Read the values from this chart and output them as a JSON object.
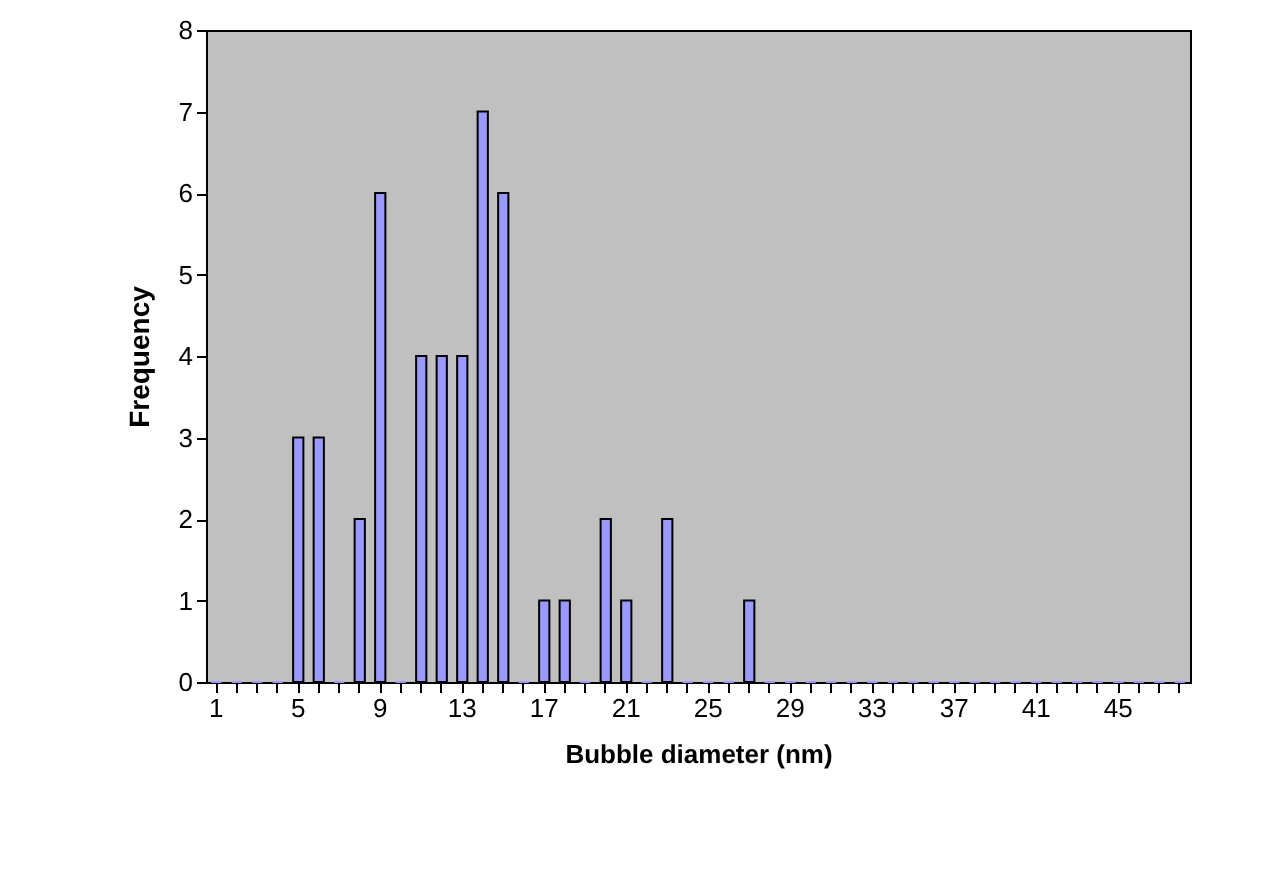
{
  "chart_data": {
    "type": "bar",
    "xlabel": "Bubble diameter (nm)",
    "ylabel": "Frequency",
    "categories": [
      "1",
      null,
      null,
      null,
      "5",
      null,
      null,
      null,
      "9",
      null,
      null,
      null,
      "13",
      null,
      null,
      null,
      "17",
      null,
      null,
      null,
      "21",
      null,
      null,
      null,
      "25",
      null,
      null,
      null,
      "29",
      null,
      null,
      null,
      "33",
      null,
      null,
      null,
      "37",
      null,
      null,
      null,
      "41",
      null,
      null,
      null,
      "45",
      null,
      null,
      null
    ],
    "values": [
      0,
      0,
      0,
      0,
      3,
      3,
      0,
      2,
      6,
      0,
      4,
      4,
      4,
      7,
      6,
      0,
      1,
      1,
      0,
      2,
      1,
      0,
      2,
      0,
      0,
      0,
      1,
      0,
      0,
      0,
      0,
      0,
      0,
      0,
      0,
      0,
      0,
      0,
      0,
      0,
      0,
      0,
      0,
      0,
      0,
      0,
      0,
      0
    ],
    "color": "#9999ff",
    "ylim": [
      0,
      8
    ],
    "yticks": [
      0,
      1,
      2,
      3,
      4,
      5,
      6,
      7,
      8
    ],
    "grid": false
  }
}
